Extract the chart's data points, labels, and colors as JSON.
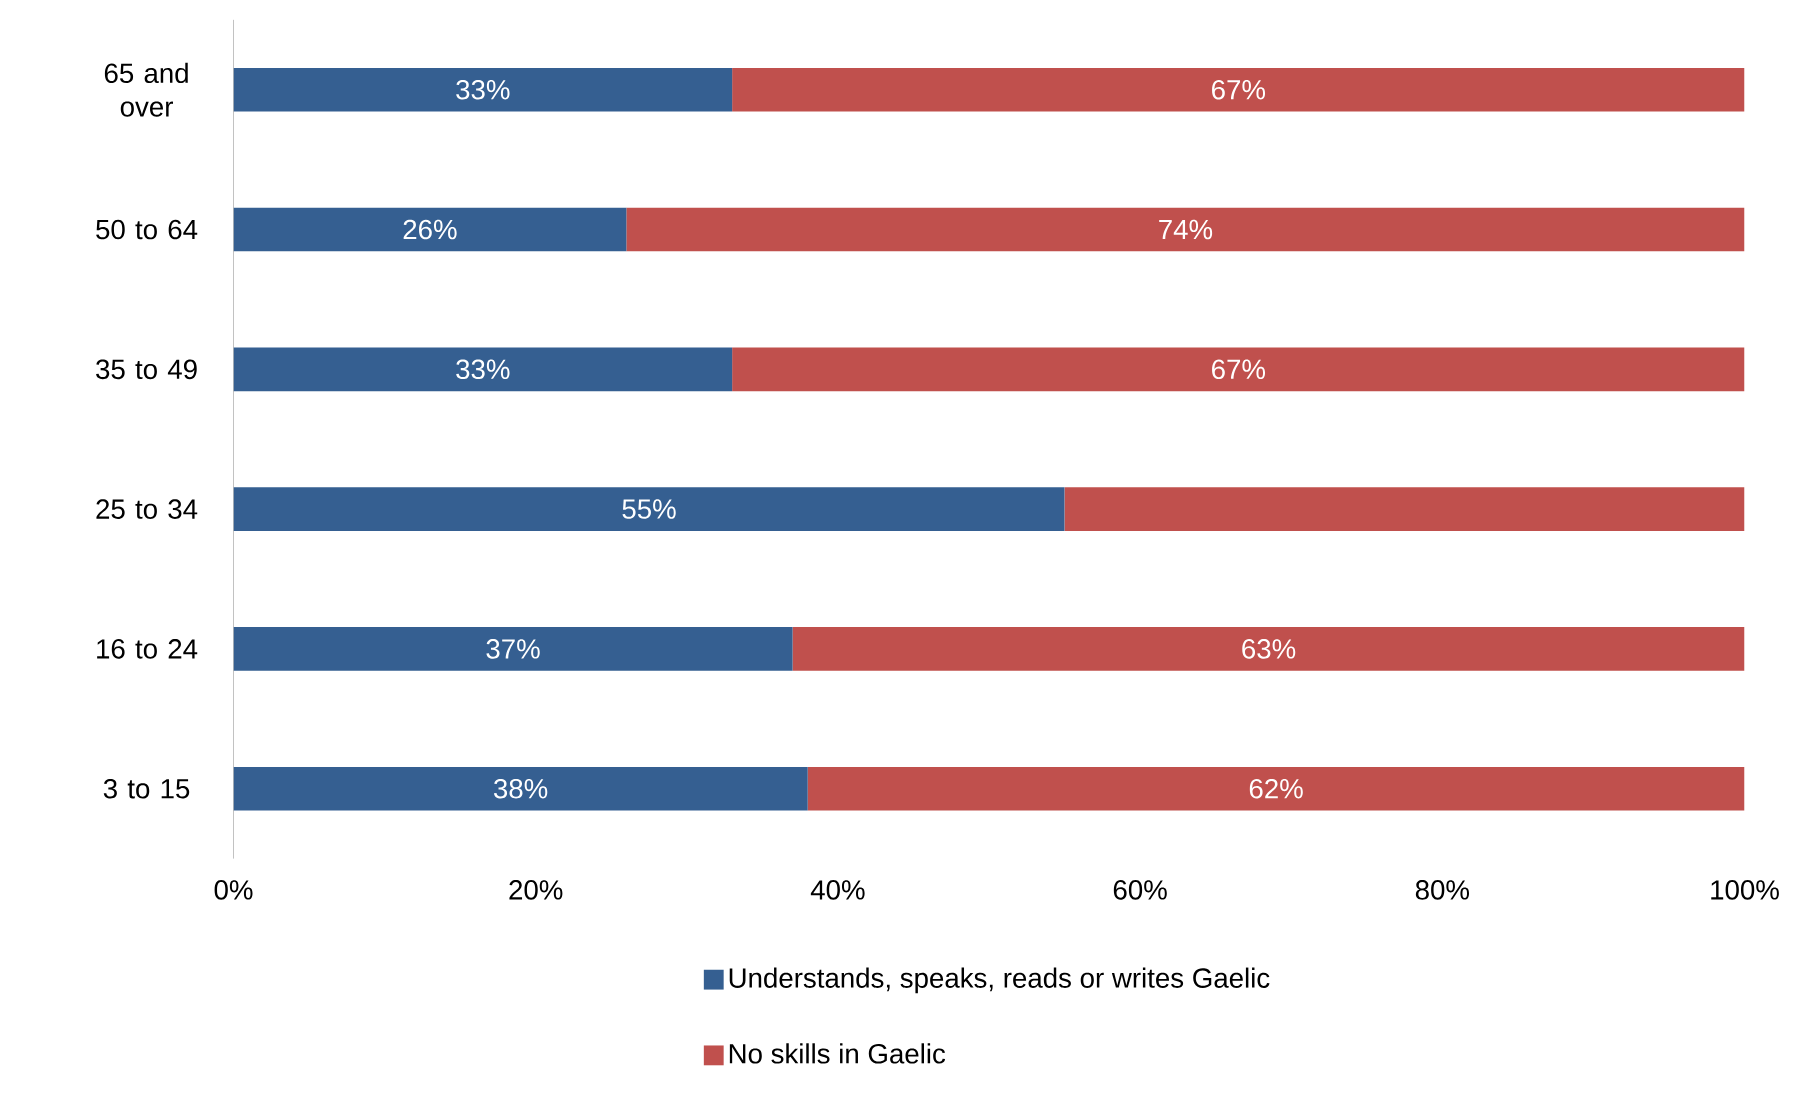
{
  "chart_data": {
    "type": "bar",
    "orientation": "horizontal",
    "stacked": true,
    "legend": "bottom",
    "categories": [
      "65 and over",
      "50 to 64",
      "35 to 49",
      "25 to 34",
      "16 to 24",
      "3 to 15"
    ],
    "series": [
      {
        "name": "Understands, speaks, reads or writes Gaelic",
        "color": "#355f91",
        "values": [
          33,
          26,
          33,
          55,
          37,
          38
        ],
        "value_labels": [
          "33%",
          "26%",
          "33%",
          "55%",
          "37%",
          "38%"
        ]
      },
      {
        "name": "No skills in Gaelic",
        "color": "#c0504d",
        "values": [
          67,
          74,
          67,
          45,
          63,
          62
        ],
        "value_labels": [
          "67%",
          "74%",
          "67%",
          null,
          "63%",
          "62%"
        ]
      }
    ],
    "xlim": [
      0,
      100
    ],
    "xticks": [
      {
        "value": 0,
        "label": "0%"
      },
      {
        "value": 20,
        "label": "20%"
      },
      {
        "value": 40,
        "label": "40%"
      },
      {
        "value": 60,
        "label": "60%"
      },
      {
        "value": 80,
        "label": "80%"
      },
      {
        "value": 100,
        "label": "100%"
      }
    ]
  }
}
